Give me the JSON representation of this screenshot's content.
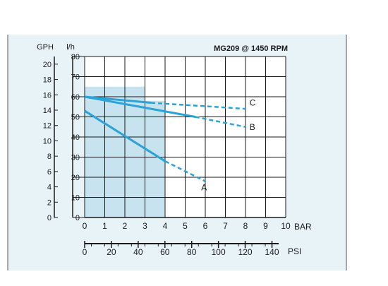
{
  "chart_data": {
    "type": "line",
    "title": "MG209 @ 1450 RPM",
    "y_left_label": "GPH",
    "y_right_label": "l/h",
    "x_label": "BAR",
    "x2_label": "PSI",
    "y_lh_ticks": [
      "0",
      "10",
      "20",
      "30",
      "40",
      "50",
      "60",
      "70",
      "80"
    ],
    "y_gph_ticks": [
      "0",
      "2",
      "4",
      "6",
      "8",
      "10",
      "12",
      "14",
      "16",
      "18",
      "20"
    ],
    "x_bar_ticks": [
      "0",
      "1",
      "2",
      "3",
      "4",
      "5",
      "6",
      "7",
      "8",
      "9",
      "10"
    ],
    "x_psi_ticks": [
      "0",
      "20",
      "40",
      "60",
      "80",
      "100",
      "120",
      "140"
    ],
    "xlim_bar": [
      0,
      10
    ],
    "ylim_lh": [
      0,
      80
    ],
    "ylim_gph": [
      0,
      21
    ],
    "psi_range": [
      0,
      145
    ],
    "grid": true,
    "series": [
      {
        "name": "A",
        "solid": [
          [
            0,
            53
          ],
          [
            4,
            28
          ]
        ],
        "dashed": [
          [
            4,
            28
          ],
          [
            6,
            18
          ]
        ],
        "label_at": [
          5.8,
          15
        ]
      },
      {
        "name": "B",
        "solid": [
          [
            0,
            60
          ],
          [
            5.5,
            50
          ]
        ],
        "dashed": [
          [
            5.5,
            50
          ],
          [
            8,
            45
          ]
        ],
        "label_at": [
          8.2,
          45
        ]
      },
      {
        "name": "C",
        "solid": [
          [
            0,
            60
          ],
          [
            3.3,
            57
          ]
        ],
        "dashed": [
          [
            3.3,
            57
          ],
          [
            8,
            54
          ]
        ],
        "label_at": [
          8.2,
          57
        ]
      }
    ],
    "shaded_regions": [
      {
        "x": [
          0,
          3
        ],
        "y": [
          58,
          65
        ]
      },
      {
        "x": [
          0,
          4
        ],
        "y": [
          0,
          58
        ]
      }
    ],
    "colors": {
      "background": "#e8f3f8",
      "series": "#2aa3d8",
      "shade": "#c6e3ef",
      "grid": "#1a1a1a"
    }
  }
}
